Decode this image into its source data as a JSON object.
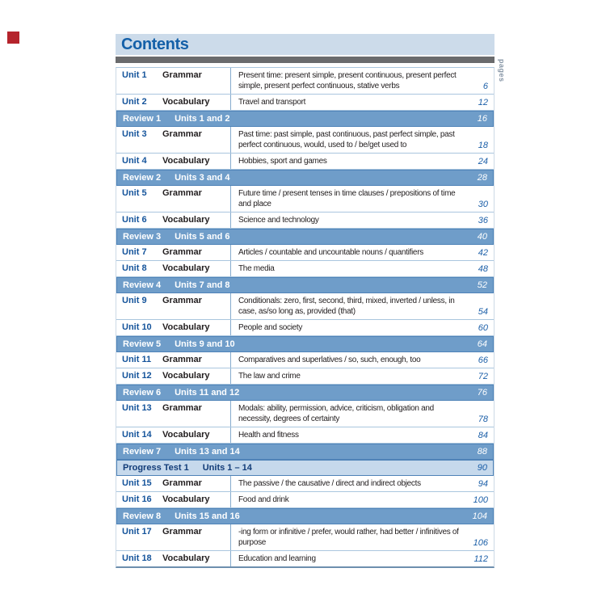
{
  "header": {
    "title": "Contents",
    "side_label": "pages"
  },
  "colors": {
    "title_blue": "#1460a8",
    "band_bg": "#ccdbea",
    "bar_gray": "#6a6b6d",
    "review_bg": "#6f9dc9",
    "review_border": "#4f83b8",
    "progress_bg": "#c6d9ec",
    "unit_blue": "#15549b",
    "pagenum_blue": "#1c5fa8",
    "divider": "#aac6de",
    "marker_red": "#b5242c"
  },
  "toc": {
    "rows": [
      {
        "type": "unit",
        "unit": "Unit 1",
        "category": "Grammar",
        "description": "Present time: present simple, present continuous, present perfect simple, present perfect continuous, stative verbs",
        "page": "6"
      },
      {
        "type": "unit",
        "unit": "Unit 2",
        "category": "Vocabulary",
        "description": "Travel and transport",
        "page": "12"
      },
      {
        "type": "review",
        "label": "Review 1",
        "units": "Units 1 and 2",
        "page": "16"
      },
      {
        "type": "unit",
        "unit": "Unit 3",
        "category": "Grammar",
        "description": "Past time: past simple, past continuous, past perfect simple, past perfect continuous, would, used to / be/get used to",
        "page": "18"
      },
      {
        "type": "unit",
        "unit": "Unit 4",
        "category": "Vocabulary",
        "description": "Hobbies, sport and games",
        "page": "24"
      },
      {
        "type": "review",
        "label": "Review 2",
        "units": "Units 3 and 4",
        "page": "28"
      },
      {
        "type": "unit",
        "unit": "Unit 5",
        "category": "Grammar",
        "description": "Future time / present tenses in time clauses / prepositions of time and place",
        "page": "30"
      },
      {
        "type": "unit",
        "unit": "Unit 6",
        "category": "Vocabulary",
        "description": "Science and technology",
        "page": "36"
      },
      {
        "type": "review",
        "label": "Review 3",
        "units": "Units 5 and 6",
        "page": "40"
      },
      {
        "type": "unit",
        "unit": "Unit 7",
        "category": "Grammar",
        "description": "Articles / countable and uncountable nouns / quantifiers",
        "page": "42"
      },
      {
        "type": "unit",
        "unit": "Unit 8",
        "category": "Vocabulary",
        "description": "The media",
        "page": "48"
      },
      {
        "type": "review",
        "label": "Review 4",
        "units": "Units 7 and 8",
        "page": "52"
      },
      {
        "type": "unit",
        "unit": "Unit 9",
        "category": "Grammar",
        "description": "Conditionals: zero, first, second, third, mixed, inverted / unless, in case, as/so long as, provided (that)",
        "page": "54"
      },
      {
        "type": "unit",
        "unit": "Unit 10",
        "category": "Vocabulary",
        "description": "People and society",
        "page": "60"
      },
      {
        "type": "review",
        "label": "Review 5",
        "units": "Units 9 and 10",
        "page": "64"
      },
      {
        "type": "unit",
        "unit": "Unit 11",
        "category": "Grammar",
        "description": "Comparatives and superlatives / so, such, enough, too",
        "page": "66"
      },
      {
        "type": "unit",
        "unit": "Unit 12",
        "category": "Vocabulary",
        "description": "The law and crime",
        "page": "72"
      },
      {
        "type": "review",
        "label": "Review 6",
        "units": "Units 11 and 12",
        "page": "76"
      },
      {
        "type": "unit",
        "unit": "Unit 13",
        "category": "Grammar",
        "description": "Modals: ability, permission, advice, criticism, obligation and necessity, degrees of certainty",
        "page": "78"
      },
      {
        "type": "unit",
        "unit": "Unit 14",
        "category": "Vocabulary",
        "description": "Health and fitness",
        "page": "84"
      },
      {
        "type": "review",
        "label": "Review 7",
        "units": "Units 13 and 14",
        "page": "88"
      },
      {
        "type": "progress",
        "label": "Progress Test 1",
        "units": "Units 1 – 14",
        "page": "90"
      },
      {
        "type": "unit",
        "unit": "Unit 15",
        "category": "Grammar",
        "description": "The passive / the causative / direct and indirect objects",
        "page": "94"
      },
      {
        "type": "unit",
        "unit": "Unit 16",
        "category": "Vocabulary",
        "description": "Food and drink",
        "page": "100"
      },
      {
        "type": "review",
        "label": "Review 8",
        "units": "Units 15 and 16",
        "page": "104"
      },
      {
        "type": "unit",
        "unit": "Unit 17",
        "category": "Grammar",
        "description": "-ing form or infinitive / prefer, would rather, had better / infinitives of purpose",
        "page": "106"
      },
      {
        "type": "unit",
        "unit": "Unit 18",
        "category": "Vocabulary",
        "description": "Education and learning",
        "page": "112"
      }
    ]
  }
}
